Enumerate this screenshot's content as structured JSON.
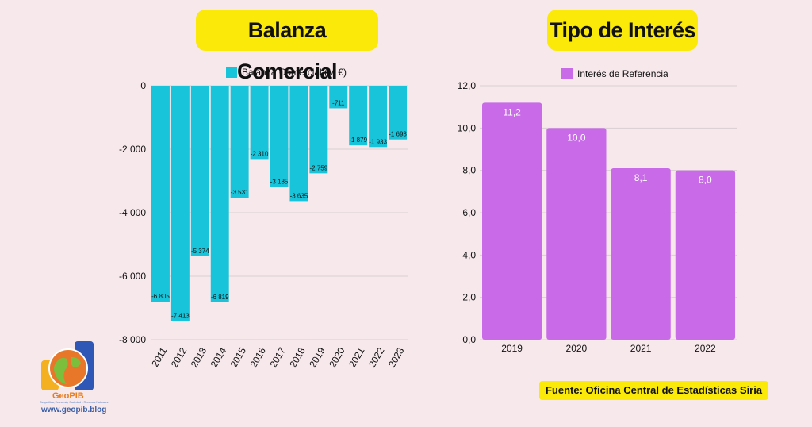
{
  "chart_data": [
    {
      "type": "bar",
      "title": "Balanza Comercial",
      "legend": "Balanza Comercial (M €)",
      "legend_position": "top",
      "categories": [
        "2011",
        "2012",
        "2013",
        "2014",
        "2015",
        "2016",
        "2017",
        "2018",
        "2019",
        "2020",
        "2021",
        "2022",
        "2023"
      ],
      "values": [
        -6805,
        -7413,
        -5374,
        -6819,
        -3531,
        -2310,
        -3185,
        -3635,
        -2759,
        -711,
        -1879,
        -1933,
        -1693
      ],
      "value_labels": [
        "-6 805",
        "-7 413",
        "-5 374",
        "-6 819",
        "-3 531",
        "-2 310",
        "-3 185",
        "-3 635",
        "-2 759",
        "-711",
        "-1 879",
        "-1 933",
        "-1 693"
      ],
      "yticks": [
        "0",
        "-2 000",
        "-4 000",
        "-6 000",
        "-8 000"
      ],
      "ytick_values": [
        0,
        -2000,
        -4000,
        -6000,
        -8000
      ],
      "ylim": [
        -8000,
        0
      ],
      "grid": true,
      "color": "#18c4d9"
    },
    {
      "type": "bar",
      "title": "Tipo de Interés",
      "legend": "Interés de Referencia",
      "legend_position": "top",
      "categories": [
        "2019",
        "2020",
        "2021",
        "2022"
      ],
      "values": [
        11.2,
        10.0,
        8.1,
        8.0
      ],
      "value_labels": [
        "11,2",
        "10,0",
        "8,1",
        "8,0"
      ],
      "yticks": [
        "0,0",
        "2,0",
        "4,0",
        "6,0",
        "8,0",
        "10,0",
        "12,0"
      ],
      "ytick_values": [
        0,
        2,
        4,
        6,
        8,
        10,
        12
      ],
      "ylim": [
        0,
        12
      ],
      "grid": true,
      "color": "#c96be8"
    }
  ],
  "source": "Fuente: Oficina Central de Estadísticas Siria",
  "logo": {
    "name": "GeoPIB",
    "tagline": "Geopolítica, Economía, Sociedad y Recursos Naturales",
    "url": "www.geopib.blog"
  }
}
